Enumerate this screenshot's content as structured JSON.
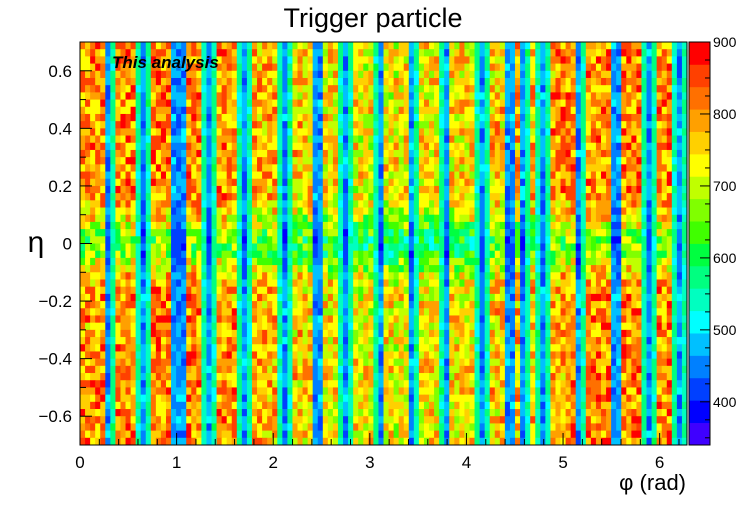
{
  "chart_data": {
    "type": "heatmap",
    "title": "Trigger particle",
    "xlabel": "φ (rad)",
    "ylabel": "η",
    "annotation": "This analysis",
    "xlim": [
      0,
      6.283
    ],
    "ylim": [
      -0.7,
      0.7
    ],
    "zlim": [
      340,
      900
    ],
    "x_ticks": [
      0,
      1,
      2,
      3,
      4,
      5,
      6
    ],
    "y_ticks": [
      -0.6,
      -0.4,
      -0.2,
      0,
      0.2,
      0.4,
      0.6
    ],
    "z_ticks": [
      400,
      500,
      600,
      700,
      800,
      900
    ],
    "x_bins": 120,
    "y_bins": 56,
    "dip_columns_phi": [
      0.31,
      0.65,
      0.99,
      1.05,
      1.33,
      1.71,
      2.13,
      2.46,
      2.74,
      3.1,
      3.45,
      3.78,
      4.15,
      4.45,
      4.6,
      4.8,
      5.17,
      5.55,
      5.89,
      6.2
    ],
    "band_structure": "rows near eta 0 are lower (about 600); outer eta rows are higher (about 750-850); narrow phi columns dip to about 400-550",
    "grid": false,
    "palette": [
      "#3f00ff",
      "#0000ff",
      "#0040ff",
      "#0080ff",
      "#00c0ff",
      "#00ffff",
      "#00ffc0",
      "#00ff80",
      "#00ff40",
      "#40ff00",
      "#80ff00",
      "#c0ff00",
      "#ffff00",
      "#ffd000",
      "#ffa000",
      "#ff7000",
      "#ff4000",
      "#ff0000"
    ]
  }
}
